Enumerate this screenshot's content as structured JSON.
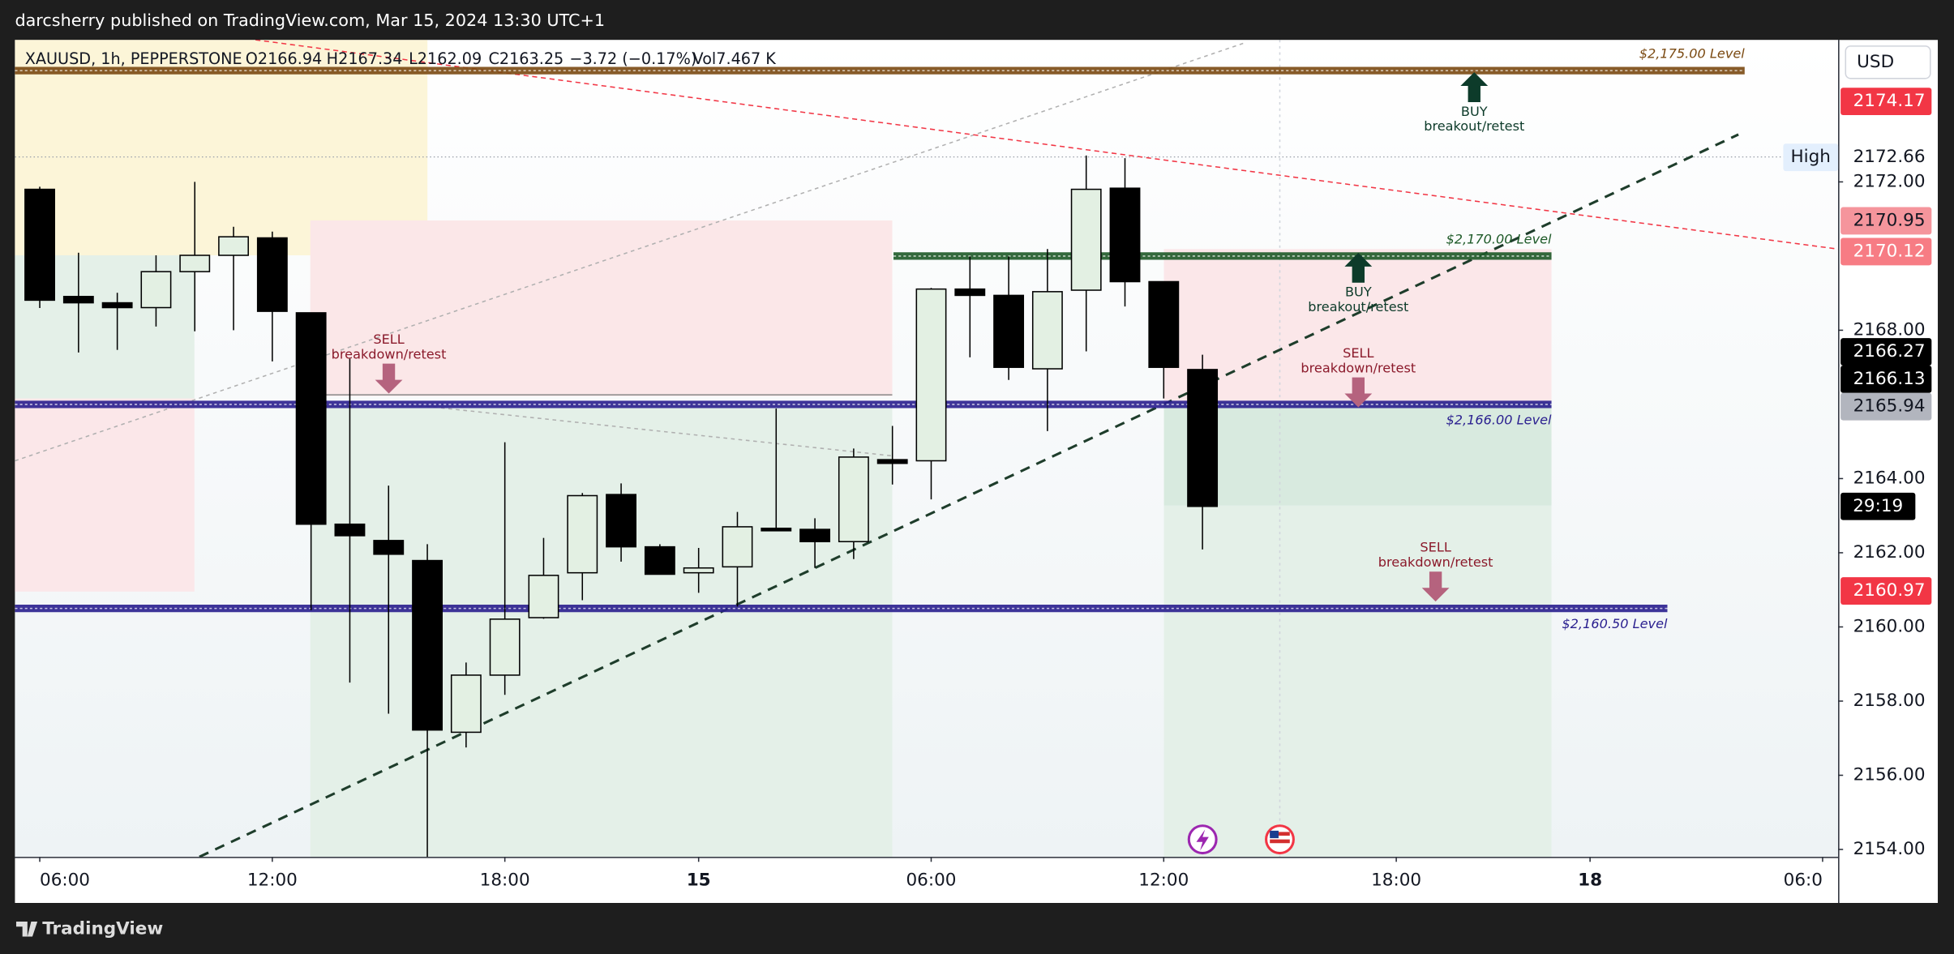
{
  "chart_data": {
    "type": "candlestick",
    "header": "darcsherry published on TradingView.com, Mar 15, 2024 13:30 UTC+1",
    "legend": [
      "XAUUSD, 1h, PEPPERSTONE",
      "O2166.94",
      "H2167.34",
      "L2162.09",
      "C2163.25",
      "−3.72 (−0.17%)",
      "Vol7.467 K"
    ],
    "currency": "USD",
    "open": [
      2171.8,
      2168.91,
      2168.74,
      2168.61,
      2169.58,
      2170.02,
      2170.49,
      2168.47,
      2162.77,
      2162.33,
      2161.79,
      2157.16,
      2158.7,
      2160.25,
      2161.46,
      2163.57,
      2162.16,
      2161.46,
      2161.62,
      2162.66,
      2162.63,
      2162.3,
      2164.51,
      2164.48,
      2169.11,
      2168.94,
      2166.96,
      2169.08,
      2171.83,
      2169.31,
      2166.94
    ],
    "high": [
      2171.87,
      2170.09,
      2169.01,
      2170.02,
      2172.0,
      2170.79,
      2170.66,
      2168.47,
      2167.23,
      2163.81,
      2162.23,
      2159.04,
      2164.98,
      2162.4,
      2163.61,
      2163.87,
      2162.23,
      2162.13,
      2163.1,
      2165.89,
      2162.93,
      2164.81,
      2165.42,
      2169.14,
      2169.99,
      2169.99,
      2170.19,
      2172.71,
      2172.64,
      2169.31,
      2167.34
    ],
    "low": [
      2168.6,
      2167.4,
      2167.47,
      2168.1,
      2167.97,
      2168.0,
      2167.16,
      2160.45,
      2158.5,
      2157.66,
      2153.8,
      2156.75,
      2158.17,
      2160.22,
      2160.72,
      2161.76,
      2161.42,
      2160.92,
      2160.55,
      2162.63,
      2161.59,
      2161.83,
      2163.84,
      2163.44,
      2167.27,
      2166.66,
      2165.28,
      2167.43,
      2168.64,
      2166.16,
      2162.09
    ],
    "close": [
      2168.81,
      2168.74,
      2168.61,
      2169.58,
      2170.02,
      2170.52,
      2168.51,
      2162.77,
      2162.46,
      2161.96,
      2157.22,
      2158.7,
      2160.21,
      2161.39,
      2163.54,
      2162.16,
      2161.42,
      2161.59,
      2162.7,
      2162.63,
      2162.3,
      2164.58,
      2164.41,
      2169.11,
      2168.94,
      2167.0,
      2169.04,
      2171.8,
      2169.31,
      2167.0,
      2163.25
    ],
    "up_color": "#e3f0e3",
    "down_color": "#000000",
    "ylim": [
      2153.8,
      2175.83
    ],
    "yticks": [
      {
        "value": 2154,
        "label": "2154.00"
      },
      {
        "value": 2156,
        "label": "2156.00"
      },
      {
        "value": 2158,
        "label": "2158.00"
      },
      {
        "value": 2160,
        "label": "2160.00"
      },
      {
        "value": 2162,
        "label": "2162.00"
      },
      {
        "value": 2164,
        "label": "2164.00"
      },
      {
        "value": 2168,
        "label": "2168.00"
      },
      {
        "value": 2172,
        "label": "2172.00"
      }
    ],
    "xlim": [
      -0.64,
      46.4
    ],
    "xticks": [
      {
        "value": 0,
        "label": "06:00"
      },
      {
        "value": 6,
        "label": "12:00"
      },
      {
        "value": 12,
        "label": "18:00"
      },
      {
        "value": 17,
        "label": "15"
      },
      {
        "value": 23,
        "label": "06:00"
      },
      {
        "value": 29,
        "label": "12:00"
      },
      {
        "value": 35,
        "label": "18:00"
      },
      {
        "value": 40,
        "label": "18"
      },
      {
        "value": 46,
        "label": "06:0"
      }
    ],
    "levels": [
      {
        "value": 2175,
        "label": "$2,175.00 Level",
        "color": "#7b4a12"
      },
      {
        "value": 2170,
        "label": "$2,170.00 Level",
        "color": "#1e5a28"
      },
      {
        "value": 2166,
        "label": "$2,166.00 Level",
        "color": "#2a1f8f"
      },
      {
        "value": 2160.5,
        "label": "$2,160.50 Level",
        "color": "#2a1f8f"
      }
    ],
    "price_labels": [
      {
        "value": 2174.17,
        "color": "#f23645"
      },
      {
        "value": 2172.66
      },
      {
        "value": 2170.95,
        "color": "#f5959c"
      },
      {
        "value": 2170.12,
        "color": "#f77c84"
      },
      {
        "value": 2166.27,
        "color": "#000000"
      },
      {
        "value": 2166.13,
        "color": "#000000"
      },
      {
        "value": 2165.94,
        "color": "#b2b5be"
      },
      {
        "value": 2160.97,
        "color": "#f23645"
      }
    ],
    "high_label": "High",
    "countdown": "29:19",
    "annotations": [
      {
        "title": "BUY",
        "text": "breakout/retest"
      },
      {
        "title": "BUY",
        "text": "breakout/retest"
      },
      {
        "title": "SELL",
        "text": "breakdown/retest"
      },
      {
        "title": "SELL",
        "text": "breakdown/retest"
      },
      {
        "title": "SELL",
        "text": "breakdown/retest"
      }
    ],
    "brand": "TradingView"
  }
}
